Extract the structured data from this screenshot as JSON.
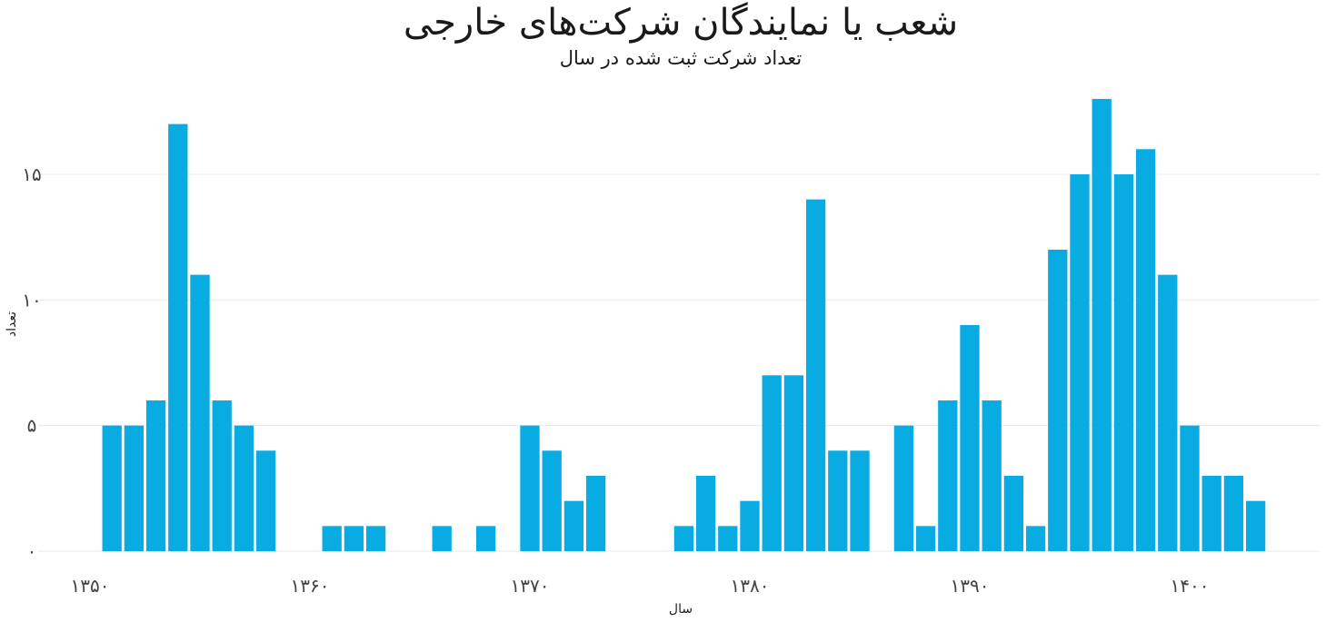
{
  "chart_data": {
    "type": "bar",
    "title": "شعب یا نمایندگان شرکت‌های خارجی",
    "subtitle": "تعداد شرکت ثبت شده در سال",
    "xlabel": "سال",
    "ylabel": "تعداد",
    "x": [
      1351,
      1352,
      1353,
      1354,
      1355,
      1356,
      1357,
      1358,
      1359,
      1360,
      1361,
      1362,
      1363,
      1364,
      1365,
      1366,
      1367,
      1368,
      1369,
      1370,
      1371,
      1372,
      1373,
      1374,
      1375,
      1376,
      1377,
      1378,
      1379,
      1380,
      1381,
      1382,
      1383,
      1384,
      1385,
      1386,
      1387,
      1388,
      1389,
      1390,
      1391,
      1392,
      1393,
      1394,
      1395,
      1396,
      1397,
      1398,
      1399,
      1400,
      1401,
      1402,
      1403
    ],
    "values": [
      5,
      5,
      6,
      17,
      11,
      6,
      5,
      4,
      0,
      0,
      1,
      1,
      1,
      0,
      0,
      1,
      0,
      1,
      0,
      5,
      4,
      2,
      3,
      0,
      0,
      0,
      1,
      3,
      1,
      2,
      7,
      7,
      14,
      4,
      4,
      0,
      5,
      1,
      6,
      9,
      6,
      3,
      1,
      12,
      15,
      18,
      15,
      16,
      11,
      5,
      3,
      3,
      2
    ],
    "xlim": [
      1350,
      1406
    ],
    "ylim": [
      0,
      18
    ],
    "x_ticks": [
      1350,
      1360,
      1370,
      1380,
      1390,
      1400
    ],
    "x_tick_labels": [
      "۱۳۵۰",
      "۱۳۶۰",
      "۱۳۷۰",
      "۱۳۸۰",
      "۱۳۹۰",
      "۱۴۰۰"
    ],
    "y_ticks": [
      0,
      5,
      10,
      15
    ],
    "y_tick_labels": [
      "۰",
      "۵",
      "۱۰",
      "۱۵"
    ],
    "grid": true,
    "legend": "none",
    "colors": {
      "bar": "#08ABE2",
      "grid": "#e8e8e8"
    }
  }
}
